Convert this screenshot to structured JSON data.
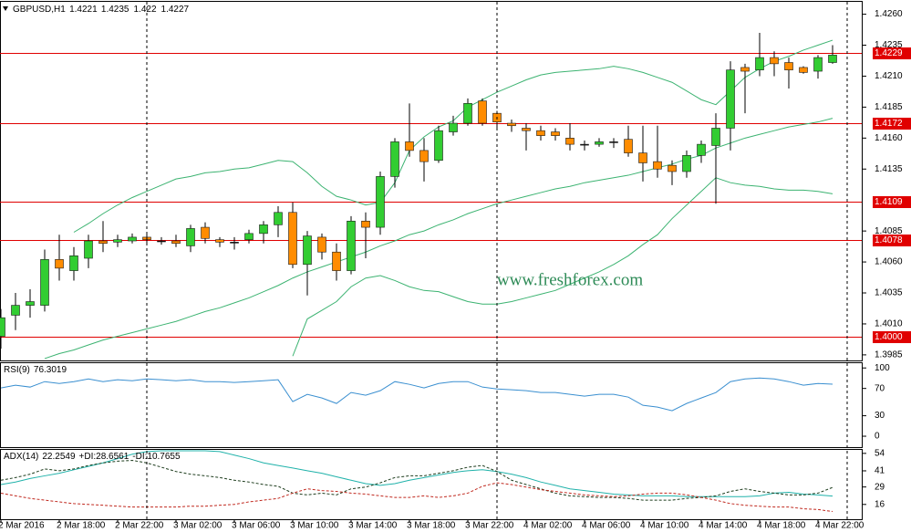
{
  "chart_data": [
    {
      "type": "candlestick",
      "title": "GBPUSD,H1",
      "categories": [
        "2 Mar 2016",
        null,
        null,
        null,
        "2 Mar 18:00",
        null,
        null,
        null,
        "2 Mar 22:00",
        null,
        null,
        null,
        "3 Mar 02:00",
        null,
        null,
        null,
        "3 Mar 06:00",
        null,
        null,
        null,
        "3 Mar 10:00",
        null,
        null,
        null,
        "3 Mar 14:00",
        null,
        null,
        null,
        "3 Mar 18:00",
        null,
        null,
        null,
        "3 Mar 22:00",
        null,
        null,
        null,
        "4 Mar 02:00",
        null,
        null,
        null,
        "4 Mar 06:00",
        null,
        null,
        null,
        "4 Mar 10:00",
        null,
        null,
        null,
        "4 Mar 14:00",
        null,
        null,
        null,
        "4 Mar 18:00",
        null,
        null,
        null,
        "4 Mar 22:00",
        null
      ],
      "open": [
        1.4,
        1.4017,
        1.4025,
        1.4025,
        1.4062,
        1.4053,
        1.4063,
        1.4077,
        1.4076,
        1.4077,
        1.408,
        1.4077,
        1.4077,
        1.4073,
        1.4088,
        1.4078,
        1.4076,
        1.4078,
        1.4083,
        1.409,
        1.41,
        1.4058,
        1.408,
        1.4068,
        1.4053,
        1.4093,
        1.4088,
        1.4129,
        1.4157,
        1.415,
        1.4142,
        1.4165,
        1.4172,
        1.419,
        1.418,
        1.4172,
        1.4168,
        1.4166,
        1.4165,
        1.416,
        1.4155,
        1.4155,
        1.4157,
        1.4159,
        1.4148,
        1.4141,
        1.4138,
        1.4133,
        1.4146,
        1.4154,
        1.4168,
        1.4217,
        1.4215,
        1.4225,
        1.4221,
        1.4217,
        1.4214,
        1.4221
      ],
      "high": [
        1.4022,
        1.4035,
        1.4038,
        1.407,
        1.4082,
        1.4072,
        1.4082,
        1.4093,
        1.4082,
        1.4083,
        1.4083,
        1.408,
        1.4082,
        1.409,
        1.4092,
        1.408,
        1.408,
        1.4086,
        1.4093,
        1.4105,
        1.4108,
        1.4085,
        1.4083,
        1.4075,
        1.4097,
        1.41,
        1.4133,
        1.416,
        1.4188,
        1.416,
        1.417,
        1.4178,
        1.4192,
        1.4192,
        1.4182,
        1.4175,
        1.4172,
        1.417,
        1.4168,
        1.4172,
        1.4158,
        1.416,
        1.416,
        1.417,
        1.417,
        1.417,
        1.4142,
        1.415,
        1.4158,
        1.418,
        1.4222,
        1.422,
        1.4245,
        1.423,
        1.4225,
        1.4218,
        1.4227,
        1.4235
      ],
      "low": [
        1.399,
        1.4005,
        1.4015,
        1.402,
        1.4045,
        1.4045,
        1.4055,
        1.4068,
        1.4072,
        1.4075,
        1.4075,
        1.4074,
        1.4072,
        1.4068,
        1.4075,
        1.4072,
        1.407,
        1.4075,
        1.4075,
        1.408,
        1.4055,
        1.4033,
        1.4062,
        1.4045,
        1.405,
        1.4063,
        1.4082,
        1.412,
        1.4145,
        1.4125,
        1.414,
        1.4162,
        1.417,
        1.417,
        1.4168,
        1.4165,
        1.415,
        1.4158,
        1.4158,
        1.415,
        1.415,
        1.4153,
        1.4152,
        1.4145,
        1.4125,
        1.4128,
        1.4122,
        1.4128,
        1.414,
        1.4107,
        1.415,
        1.418,
        1.421,
        1.421,
        1.42,
        1.4212,
        1.4208,
        1.422
      ],
      "close": [
        1.4015,
        1.4025,
        1.4028,
        1.4062,
        1.4055,
        1.4065,
        1.4077,
        1.4075,
        1.4078,
        1.408,
        1.4078,
        1.4077,
        1.4075,
        1.4087,
        1.4079,
        1.4076,
        1.4076,
        1.4083,
        1.409,
        1.41,
        1.4058,
        1.4081,
        1.4068,
        1.4053,
        1.4093,
        1.4088,
        1.4129,
        1.4157,
        1.415,
        1.4141,
        1.4166,
        1.4172,
        1.4188,
        1.4172,
        1.4173,
        1.417,
        1.4166,
        1.4162,
        1.4162,
        1.4155,
        1.4155,
        1.4157,
        1.4157,
        1.4148,
        1.414,
        1.4135,
        1.4133,
        1.4146,
        1.4155,
        1.4168,
        1.4215,
        1.4214,
        1.4225,
        1.422,
        1.4215,
        1.4213,
        1.4225,
        1.4227
      ],
      "up_color": "#32cd32",
      "down_color": "#ff8c00",
      "doji_color": "#000000",
      "bands": {
        "color": "#3cb371",
        "upper": [
          null,
          null,
          null,
          null,
          null,
          1.4084,
          1.4091,
          1.4099,
          1.4106,
          1.4112,
          1.4117,
          1.4122,
          1.4127,
          1.4129,
          1.4132,
          1.4133,
          1.4135,
          1.4136,
          1.4139,
          1.4142,
          1.4141,
          1.4132,
          1.4121,
          1.4113,
          1.411,
          1.4106,
          1.4108,
          1.4124,
          1.415,
          1.4161,
          1.4169,
          1.4174,
          1.4185,
          1.4191,
          1.4197,
          1.4202,
          1.4207,
          1.4211,
          1.4213,
          1.4214,
          1.4215,
          1.4216,
          1.4218,
          1.4216,
          1.4213,
          1.4209,
          1.4205,
          1.4198,
          1.4191,
          1.4187,
          1.4198,
          1.4209,
          1.4216,
          1.4222,
          1.4226,
          1.4231,
          1.4235,
          1.4239
        ],
        "middle": [
          null,
          null,
          null,
          1.3982,
          1.3986,
          1.3989,
          1.3993,
          1.3997,
          1.4,
          1.4003,
          1.4006,
          1.4009,
          1.4012,
          1.4016,
          1.402,
          1.4023,
          1.4027,
          1.4031,
          1.4036,
          1.4041,
          1.4047,
          1.4052,
          1.4056,
          1.406,
          1.4064,
          1.4068,
          1.4073,
          1.4077,
          1.4082,
          1.4085,
          1.409,
          1.4094,
          1.4099,
          1.4103,
          1.4107,
          1.411,
          1.4113,
          1.4116,
          1.4119,
          1.4121,
          1.4124,
          1.4126,
          1.4128,
          1.413,
          1.4133,
          1.4136,
          1.4139,
          1.4143,
          1.4146,
          1.4152,
          1.4156,
          1.416,
          1.4163,
          1.4166,
          1.4169,
          1.4171,
          1.4173,
          1.4176
        ],
        "lower": [
          null,
          null,
          null,
          null,
          null,
          null,
          null,
          null,
          null,
          null,
          null,
          null,
          null,
          null,
          null,
          null,
          null,
          null,
          null,
          null,
          1.3984,
          1.4014,
          1.4021,
          1.4028,
          1.404,
          1.4047,
          1.4049,
          1.4045,
          1.404,
          1.4037,
          1.4036,
          1.4032,
          1.4028,
          1.4026,
          1.4026,
          1.4028,
          1.4031,
          1.4034,
          1.4037,
          1.4042,
          1.4047,
          1.4052,
          1.4058,
          1.4065,
          1.4074,
          1.4082,
          1.4095,
          1.4106,
          1.4117,
          1.4128,
          1.4124,
          1.4122,
          1.4121,
          1.4119,
          1.4118,
          1.4118,
          1.4117,
          1.4115
        ]
      },
      "levels": {
        "color": "#e00000",
        "values": [
          1.4229,
          1.4172,
          1.4109,
          1.4078,
          1.4
        ],
        "value_labels": [
          "1.4229",
          "1.4172",
          "1.4109",
          "1.4078",
          "1.4000"
        ]
      },
      "annotation": "www.freshforex.com",
      "ylim": [
        1.39805,
        1.427
      ],
      "yticks": [
        1.3985,
        {
          "value": 1.401,
          "label": "1.4010"
        },
        1.4035,
        {
          "value": 1.406,
          "label": "1.4060"
        },
        1.4085,
        1.4135,
        {
          "value": 1.416,
          "label": "1.4160"
        },
        1.4185,
        {
          "value": 1.421,
          "label": "1.4210"
        },
        1.4235,
        {
          "value": 1.426,
          "label": "1.4260"
        }
      ]
    },
    {
      "type": "line",
      "title": "RSI(9)",
      "series": [
        {
          "color": "#3a8fd0",
          "values": [
            70.7,
            74.7,
            72,
            80,
            77.3,
            80,
            84,
            80,
            82.7,
            81.3,
            84,
            82.7,
            81.3,
            82.7,
            80,
            80,
            78.7,
            80,
            81.3,
            82.7,
            50.7,
            61.3,
            56,
            48,
            64,
            60,
            66.7,
            80,
            76,
            70.7,
            77.3,
            80,
            80,
            72,
            69.3,
            68,
            66.7,
            64,
            64,
            61.3,
            58.7,
            61.3,
            61.3,
            57.3,
            45.3,
            42.7,
            37.3,
            48,
            56,
            64,
            80,
            84,
            85.3,
            84,
            80,
            74.7,
            77.3,
            76.3019
          ]
        }
      ],
      "ylim": [
        -16,
        107
      ],
      "yticks": [
        0,
        30,
        70,
        100
      ]
    },
    {
      "type": "line",
      "series": [
        {
          "name": "ADX(14)",
          "color": "#20b2aa",
          "values": [
            30.8,
            32.7,
            35.3,
            37.3,
            39.2,
            41.8,
            44.3,
            46.9,
            50.1,
            53.4,
            55.3,
            55.9,
            55.9,
            55.9,
            55.9,
            55.3,
            52.7,
            50.1,
            46.9,
            45.0,
            43.1,
            41.1,
            39.2,
            36.6,
            34.0,
            31.5,
            30.2,
            31.5,
            34.0,
            36.0,
            37.9,
            39.8,
            41.1,
            41.8,
            40.5,
            38.5,
            36.0,
            32.7,
            30.2,
            27.6,
            26.3,
            25.0,
            23.7,
            23.1,
            22.4,
            22.4,
            22.4,
            21.8,
            21.8,
            21.8,
            21.8,
            21.8,
            22.4,
            24.4,
            25.0,
            23.7,
            23.1,
            22.2549
          ]
        },
        {
          "name": "+DI:",
          "color": "#1e3d1e",
          "dashed": true,
          "values": [
            34.0,
            36.0,
            38.5,
            42.4,
            41.1,
            42.4,
            45.0,
            46.9,
            48.2,
            48.8,
            46.9,
            43.7,
            40.5,
            38.5,
            37.3,
            36.0,
            34.0,
            32.7,
            30.8,
            29.5,
            24.4,
            23.1,
            24.4,
            23.1,
            27.6,
            28.9,
            32.1,
            36.0,
            37.3,
            37.3,
            39.2,
            41.1,
            43.7,
            45.0,
            40.5,
            34.0,
            30.8,
            27.6,
            24.4,
            22.4,
            21.8,
            21.2,
            21.2,
            20.5,
            19.2,
            19.2,
            19.2,
            20.5,
            21.2,
            22.4,
            25.7,
            27.6,
            25.7,
            24.4,
            23.1,
            23.1,
            24.4,
            28.6561
          ]
        },
        {
          "name": "-DI:",
          "color": "#c0281e",
          "dashed": true,
          "values": [
            24.4,
            22.4,
            20.5,
            19.2,
            17.9,
            16.6,
            16.0,
            15.4,
            14.7,
            14.1,
            14.1,
            14.1,
            14.1,
            14.7,
            14.7,
            15.4,
            16.0,
            17.9,
            19.2,
            20.5,
            24.4,
            27.6,
            26.3,
            25.7,
            24.4,
            23.7,
            22.4,
            21.2,
            21.2,
            22.4,
            21.2,
            22.4,
            24.4,
            29.5,
            32.1,
            30.8,
            28.9,
            27.0,
            25.7,
            24.4,
            23.1,
            22.4,
            21.8,
            22.4,
            23.7,
            24.4,
            24.4,
            23.1,
            21.2,
            19.2,
            16.6,
            15.4,
            14.7,
            14.1,
            14.1,
            12.8,
            12.2,
            10.7655
          ]
        }
      ],
      "ylim": [
        5,
        56.6
      ],
      "yticks": [
        16,
        29,
        41,
        54
      ]
    }
  ]
}
